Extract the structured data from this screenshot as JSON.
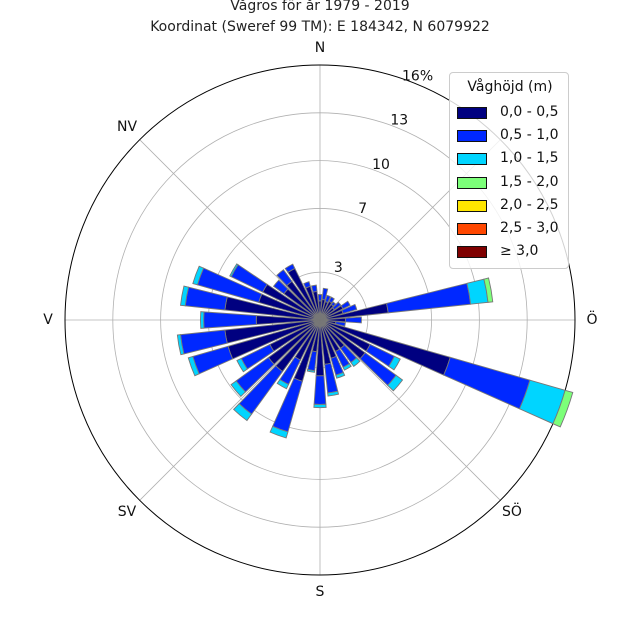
{
  "chart_data": {
    "type": "windrose",
    "title": "Vågros för år 1979 - 2019",
    "subtitle": "Koordinat (Sweref 99 TM): E 184342, N 6079922",
    "legend_title": "Våghöjd (m)",
    "radial_max": 16,
    "radial_ticks": [
      {
        "value": 3,
        "label": "3"
      },
      {
        "value": 7,
        "label": "7"
      },
      {
        "value": 10,
        "label": "10"
      },
      {
        "value": 13,
        "label": "13"
      },
      {
        "value": 16,
        "label": "16%"
      }
    ],
    "direction_labels": [
      "N",
      "NV",
      "V",
      "SV",
      "S",
      "SÖ",
      "Ö"
    ],
    "bins": [
      {
        "label": "0,0 - 0,5",
        "color": "#000080"
      },
      {
        "label": "0,5 - 1,0",
        "color": "#0028ff"
      },
      {
        "label": "1,0 - 1,5",
        "color": "#00d5ff"
      },
      {
        "label": "1,5 - 2,0",
        "color": "#7cff79"
      },
      {
        "label": "2,0 - 2,5",
        "color": "#ffe600"
      },
      {
        "label": "2,5 - 3,0",
        "color": "#ff4700"
      },
      {
        "label": "≥ 3,0",
        "color": "#7f0000"
      }
    ],
    "sectors": [
      {
        "direction_deg": 0,
        "values": [
          1.2,
          0.4,
          0.0
        ]
      },
      {
        "direction_deg": 10,
        "values": [
          1.3,
          0.7,
          0.0
        ]
      },
      {
        "direction_deg": 20,
        "values": [
          1.2,
          0.4,
          0.0
        ]
      },
      {
        "direction_deg": 30,
        "values": [
          1.3,
          0.3,
          0.0
        ]
      },
      {
        "direction_deg": 40,
        "values": [
          1.2,
          0.2,
          0.0
        ]
      },
      {
        "direction_deg": 50,
        "values": [
          1.1,
          0.5,
          0.0
        ]
      },
      {
        "direction_deg": 60,
        "values": [
          1.6,
          0.5,
          0.0
        ]
      },
      {
        "direction_deg": 70,
        "values": [
          1.5,
          0.9,
          0.0
        ]
      },
      {
        "direction_deg": 80,
        "values": [
          4.3,
          5.2,
          1.1,
          0.3
        ]
      },
      {
        "direction_deg": 90,
        "values": [
          1.6,
          1.0,
          0.0
        ]
      },
      {
        "direction_deg": 100,
        "values": [
          1.0,
          0.6,
          0.0
        ]
      },
      {
        "direction_deg": 110,
        "values": [
          8.5,
          5.2,
          2.3,
          0.5
        ]
      },
      {
        "direction_deg": 120,
        "values": [
          3.5,
          1.7,
          0.4
        ]
      },
      {
        "direction_deg": 130,
        "values": [
          3.5,
          2.4,
          0.5
        ]
      },
      {
        "direction_deg": 140,
        "values": [
          2.2,
          1.1,
          0.3
        ]
      },
      {
        "direction_deg": 150,
        "values": [
          2.2,
          1.1,
          0.2
        ]
      },
      {
        "direction_deg": 160,
        "values": [
          2.5,
          1.1,
          0.2
        ]
      },
      {
        "direction_deg": 170,
        "values": [
          2.8,
          1.8,
          0.2
        ]
      },
      {
        "direction_deg": 180,
        "values": [
          3.5,
          1.8,
          0.2
        ]
      },
      {
        "direction_deg": 190,
        "values": [
          2.0,
          1.2,
          0.1
        ]
      },
      {
        "direction_deg": 200,
        "values": [
          4.0,
          3.3,
          0.4
        ]
      },
      {
        "direction_deg": 210,
        "values": [
          2.8,
          1.7,
          0.3
        ]
      },
      {
        "direction_deg": 220,
        "values": [
          4.0,
          3.3,
          0.5
        ]
      },
      {
        "direction_deg": 230,
        "values": [
          4.0,
          2.5,
          0.4
        ]
      },
      {
        "direction_deg": 240,
        "values": [
          3.5,
          2.0,
          0.3
        ]
      },
      {
        "direction_deg": 250,
        "values": [
          6.0,
          2.3,
          0.3
        ]
      },
      {
        "direction_deg": 260,
        "values": [
          6.0,
          2.8,
          0.2
        ]
      },
      {
        "direction_deg": 270,
        "values": [
          4.0,
          3.3,
          0.2
        ]
      },
      {
        "direction_deg": 280,
        "values": [
          6.0,
          2.5,
          0.3
        ]
      },
      {
        "direction_deg": 290,
        "values": [
          4.0,
          4.0,
          0.3
        ]
      },
      {
        "direction_deg": 300,
        "values": [
          4.0,
          2.2,
          0.1
        ]
      },
      {
        "direction_deg": 310,
        "values": [
          2.8,
          0.8,
          0.0
        ]
      },
      {
        "direction_deg": 320,
        "values": [
          3.0,
          0.9,
          0.0
        ]
      },
      {
        "direction_deg": 330,
        "values": [
          3.6,
          0.3,
          0.0
        ]
      },
      {
        "direction_deg": 340,
        "values": [
          2.2,
          0.3,
          0.0
        ]
      },
      {
        "direction_deg": 350,
        "values": [
          1.8,
          0.4,
          0.0
        ]
      }
    ]
  }
}
